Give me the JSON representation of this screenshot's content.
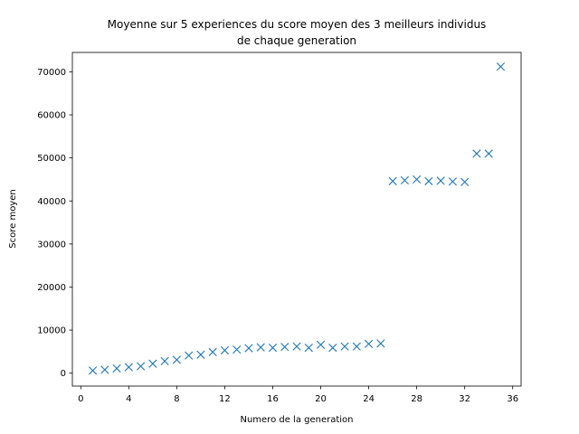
{
  "chart_data": {
    "type": "scatter",
    "title_line1": "Moyenne sur 5 experiences du score moyen des 3 meilleurs individus",
    "title_line2": "de chaque generation",
    "xlabel": "Numero de la generation",
    "ylabel": "Score moyen",
    "xlim": [
      -0.7,
      36.7
    ],
    "ylim": [
      -3000,
      74500
    ],
    "xticks": [
      0,
      4,
      8,
      12,
      16,
      20,
      24,
      28,
      32,
      36
    ],
    "yticks": [
      0,
      10000,
      20000,
      30000,
      40000,
      50000,
      60000,
      70000
    ],
    "marker": "x",
    "color": "#1f77b4",
    "grid": false,
    "x": [
      1,
      2,
      3,
      4,
      5,
      6,
      7,
      8,
      9,
      10,
      11,
      12,
      13,
      14,
      15,
      16,
      17,
      18,
      19,
      20,
      21,
      22,
      23,
      24,
      25,
      26,
      27,
      28,
      29,
      30,
      31,
      32,
      33,
      34,
      35
    ],
    "y": [
      600,
      800,
      1100,
      1400,
      1600,
      2200,
      2800,
      3100,
      4100,
      4300,
      4900,
      5300,
      5500,
      5800,
      6000,
      5900,
      6100,
      6200,
      5900,
      6600,
      5900,
      6200,
      6200,
      6800,
      6900,
      44600,
      44800,
      45000,
      44600,
      44700,
      44500,
      44400,
      51000,
      51000,
      71200
    ]
  }
}
